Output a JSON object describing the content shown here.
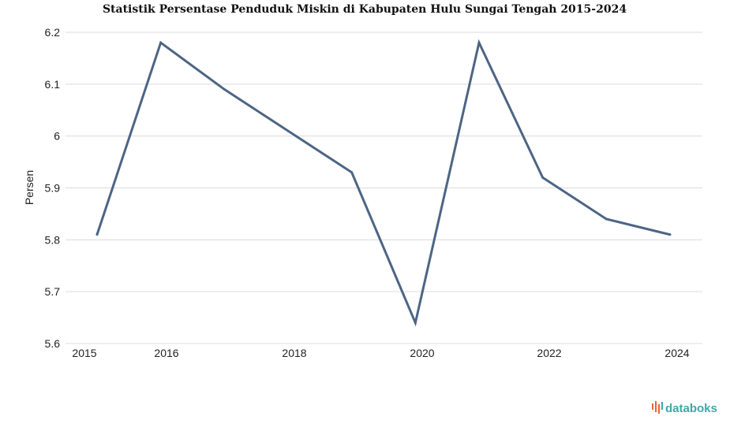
{
  "chart_data": {
    "type": "line",
    "title": "Statistik Persentase Penduduk Miskin di Kabupaten Hulu Sungai Tengah 2015-2024",
    "xlabel": "",
    "ylabel": "Persen",
    "x": [
      2015,
      2016,
      2017,
      2018,
      2019,
      2020,
      2021,
      2022,
      2023,
      2024
    ],
    "series": [
      {
        "values": [
          5.81,
          6.18,
          6.09,
          6.01,
          5.93,
          5.64,
          6.18,
          5.92,
          5.84,
          5.81
        ]
      }
    ],
    "x_ticks": [
      "2015",
      "2016",
      "2018",
      "2020",
      "2022",
      "2024"
    ],
    "y_ticks": [
      "5.6",
      "5.7",
      "5.8",
      "5.9",
      "6",
      "6.1",
      "6.2"
    ],
    "ylim": [
      5.6,
      6.2
    ],
    "grid": true,
    "legend": "none",
    "colors": {
      "line": "#4d6584",
      "grid": "#dcdcdc"
    }
  },
  "brand": {
    "name": "databoks",
    "icon": "databoks-logo-icon",
    "color": "#3fa8a8",
    "accent": "#e8633a"
  }
}
